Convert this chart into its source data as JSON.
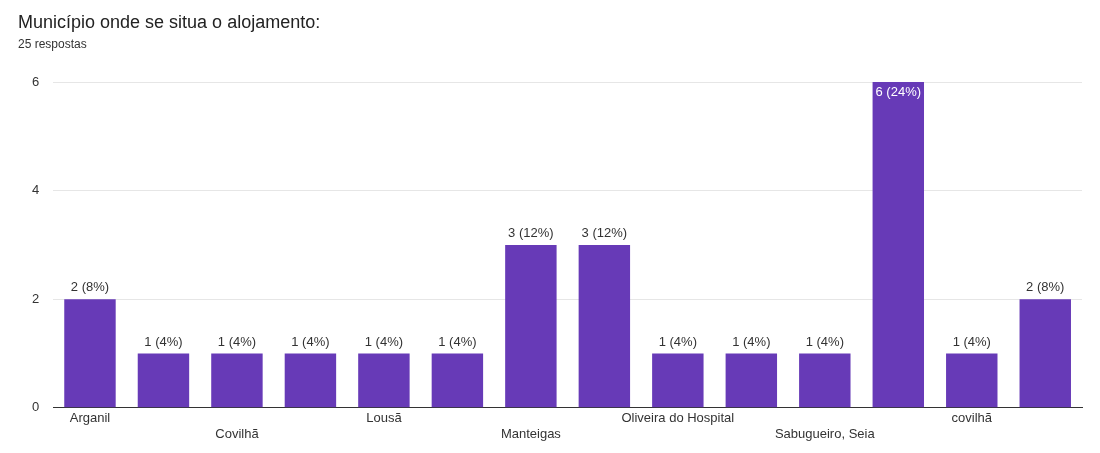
{
  "chart_data": {
    "type": "bar",
    "title": "Município onde se situa o alojamento:",
    "subtitle": "25 respostas",
    "categories": [
      "Arganil",
      null,
      "Covilhã",
      null,
      "Lousã",
      null,
      "Manteigas",
      null,
      "Oliveira do Hospital",
      null,
      "Sabugueiro, Seia",
      null,
      "covilhã",
      null
    ],
    "values": [
      2,
      1,
      1,
      1,
      1,
      1,
      3,
      3,
      1,
      1,
      1,
      6,
      1,
      2
    ],
    "value_labels": [
      "2 (8%)",
      "1 (4%)",
      "1 (4%)",
      "1 (4%)",
      "1 (4%)",
      "1 (4%)",
      "3 (12%)",
      "3 (12%)",
      "1 (4%)",
      "1 (4%)",
      "1 (4%)",
      "6 (24%)",
      "1 (4%)",
      "2 (8%)"
    ],
    "color": "#673ab7",
    "ylim": [
      0,
      6
    ],
    "yticks": [
      0,
      2,
      4,
      6
    ],
    "grid": "y"
  }
}
